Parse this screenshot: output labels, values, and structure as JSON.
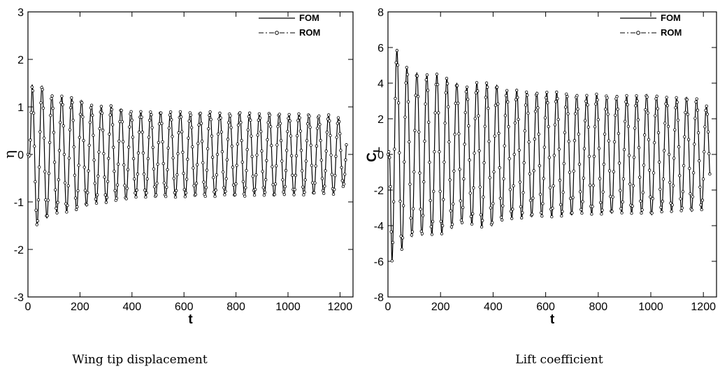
{
  "chart_data": [
    {
      "type": "line",
      "caption": "Wing tip displacement",
      "xlabel": "t",
      "ylabel": "η",
      "xlim": [
        0,
        1250
      ],
      "ylim": [
        -3,
        3
      ],
      "xticks": [
        "0",
        "200",
        "400",
        "600",
        "800",
        "1000",
        "1200"
      ],
      "yticks": [
        "-3",
        "-2",
        "-1",
        "0",
        "1",
        "2",
        "3"
      ],
      "legend": [
        "FOM",
        "ROM"
      ],
      "legend_position": "top-right",
      "grid": false,
      "t_max": 1225,
      "series": [
        {
          "name": "FOM",
          "style": "solid",
          "period": 38,
          "peaks": [
            [
              16,
              1.47
            ],
            [
              39,
              -1.5
            ],
            [
              62,
              1.4
            ],
            [
              88,
              -1.25
            ],
            [
              140,
              1.22
            ],
            [
              165,
              -1.2
            ],
            [
              192,
              1.17
            ],
            [
              240,
              -1.05
            ],
            [
              265,
              1.03
            ],
            [
              290,
              -1.0
            ],
            [
              320,
              1.03
            ],
            [
              350,
              -0.95
            ],
            [
              370,
              0.97
            ],
            [
              400,
              -0.9
            ],
            [
              460,
              0.9
            ],
            [
              520,
              -0.9
            ],
            [
              580,
              0.9
            ],
            [
              640,
              -0.88
            ],
            [
              700,
              0.9
            ],
            [
              760,
              -0.85
            ],
            [
              820,
              0.9
            ],
            [
              880,
              -0.85
            ],
            [
              940,
              0.88
            ],
            [
              1000,
              -0.84
            ],
            [
              1060,
              0.86
            ],
            [
              1120,
              -0.82
            ],
            [
              1180,
              0.84
            ],
            [
              1225,
              0.62
            ]
          ]
        },
        {
          "name": "ROM",
          "style": "dash-dot with circle markers",
          "same_as": "FOM"
        }
      ]
    },
    {
      "type": "line",
      "caption": "Lift coefficient",
      "xlabel": "t",
      "ylabel": "C",
      "ylabel_sub": "L",
      "xlim": [
        0,
        1250
      ],
      "ylim": [
        -8,
        8
      ],
      "xticks": [
        "0",
        "200",
        "400",
        "600",
        "800",
        "1000",
        "1200"
      ],
      "yticks": [
        "-8",
        "-6",
        "-4",
        "-2",
        "0",
        "2",
        "4",
        "6",
        "8"
      ],
      "legend": [
        "FOM",
        "ROM"
      ],
      "legend_position": "top-right",
      "grid": false,
      "t_max": 1225,
      "series": [
        {
          "name": "FOM",
          "style": "solid",
          "period": 38,
          "peaks": [
            [
              15,
              -6.0
            ],
            [
              38,
              5.8
            ],
            [
              60,
              -5.1
            ],
            [
              90,
              4.6
            ],
            [
              150,
              4.5
            ],
            [
              200,
              -4.5
            ],
            [
              260,
              4.0
            ],
            [
              300,
              -3.8
            ],
            [
              350,
              4.1
            ],
            [
              400,
              -4.0
            ],
            [
              450,
              3.6
            ],
            [
              500,
              -3.6
            ],
            [
              550,
              3.5
            ],
            [
              600,
              -3.5
            ],
            [
              650,
              3.5
            ],
            [
              700,
              -3.4
            ],
            [
              750,
              3.3
            ],
            [
              800,
              -3.4
            ],
            [
              850,
              3.3
            ],
            [
              900,
              -3.3
            ],
            [
              950,
              3.3
            ],
            [
              1000,
              -3.4
            ],
            [
              1050,
              3.2
            ],
            [
              1100,
              -3.2
            ],
            [
              1150,
              3.2
            ],
            [
              1200,
              -3.1
            ],
            [
              1225,
              -2.3
            ]
          ]
        },
        {
          "name": "ROM",
          "style": "dash-dot with circle markers",
          "same_as": "FOM"
        }
      ]
    }
  ]
}
